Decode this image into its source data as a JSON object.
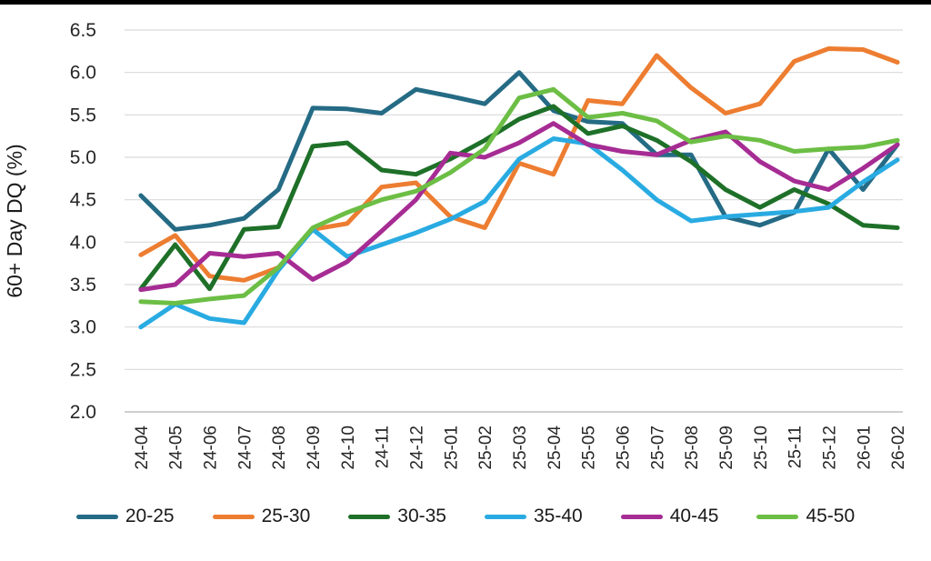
{
  "page": {
    "background": "#FFFFFF",
    "top_border_color": "#000000"
  },
  "chart_data": {
    "type": "line",
    "title": "",
    "ylabel": "60+ Day DQ (%)",
    "xlabel": "",
    "ylim": [
      2.0,
      6.5
    ],
    "ytick_step": 0.5,
    "ytick_labels": [
      "2.0",
      "2.5",
      "3.0",
      "3.5",
      "4.0",
      "4.5",
      "5.0",
      "5.5",
      "6.0",
      "6.5"
    ],
    "grid": true,
    "gridline_color": "#D9D9D9",
    "axis_line_color": "#BFBFBF",
    "tick_label_color": "#262626",
    "legend_position": "bottom",
    "categories": [
      "24-04",
      "24-05",
      "24-06",
      "24-07",
      "24-08",
      "24-09",
      "24-10",
      "24-11",
      "24-12",
      "25-01",
      "25-02",
      "25-03",
      "25-04",
      "25-05",
      "25-06",
      "25-07",
      "25-08",
      "25-09",
      "25-10",
      "25-11",
      "25-12",
      "26-01",
      "26-02"
    ],
    "series": [
      {
        "name": "20-25",
        "color": "#256B85",
        "values": [
          4.55,
          4.15,
          4.2,
          4.28,
          4.62,
          5.58,
          5.57,
          5.52,
          5.8,
          5.72,
          5.63,
          6.0,
          5.55,
          5.42,
          5.4,
          5.03,
          5.03,
          4.3,
          4.2,
          4.35,
          5.1,
          4.62,
          5.15
        ]
      },
      {
        "name": "25-30",
        "color": "#ED7D31",
        "values": [
          3.85,
          4.08,
          3.6,
          3.55,
          3.7,
          4.15,
          4.22,
          4.65,
          4.7,
          4.3,
          4.17,
          4.93,
          4.8,
          5.67,
          5.63,
          6.2,
          5.82,
          5.52,
          5.63,
          6.13,
          6.28,
          6.27,
          6.12
        ]
      },
      {
        "name": "30-35",
        "color": "#1E7028",
        "values": [
          3.45,
          3.97,
          3.45,
          4.15,
          4.18,
          5.13,
          5.17,
          4.85,
          4.8,
          4.98,
          5.2,
          5.45,
          5.6,
          5.28,
          5.37,
          5.2,
          4.95,
          4.62,
          4.41,
          4.62,
          4.45,
          4.2,
          4.17
        ]
      },
      {
        "name": "35-40",
        "color": "#29ABE2",
        "values": [
          3.0,
          3.27,
          3.1,
          3.05,
          3.67,
          4.15,
          3.83,
          3.97,
          4.11,
          4.27,
          4.48,
          4.98,
          5.22,
          5.16,
          4.85,
          4.5,
          4.25,
          4.3,
          4.33,
          4.36,
          4.41,
          4.71,
          4.97
        ]
      },
      {
        "name": "40-45",
        "color": "#A62C94",
        "values": [
          3.44,
          3.5,
          3.87,
          3.83,
          3.87,
          3.56,
          3.77,
          4.13,
          4.5,
          5.05,
          5.0,
          5.17,
          5.4,
          5.15,
          5.07,
          5.03,
          5.2,
          5.3,
          4.95,
          4.72,
          4.62,
          4.87,
          5.15
        ]
      },
      {
        "name": "45-50",
        "color": "#6CBE45",
        "values": [
          3.3,
          3.28,
          3.33,
          3.37,
          3.7,
          4.17,
          4.35,
          4.5,
          4.6,
          4.82,
          5.1,
          5.7,
          5.8,
          5.47,
          5.52,
          5.43,
          5.18,
          5.25,
          5.2,
          5.07,
          5.1,
          5.12,
          5.2
        ]
      }
    ]
  }
}
